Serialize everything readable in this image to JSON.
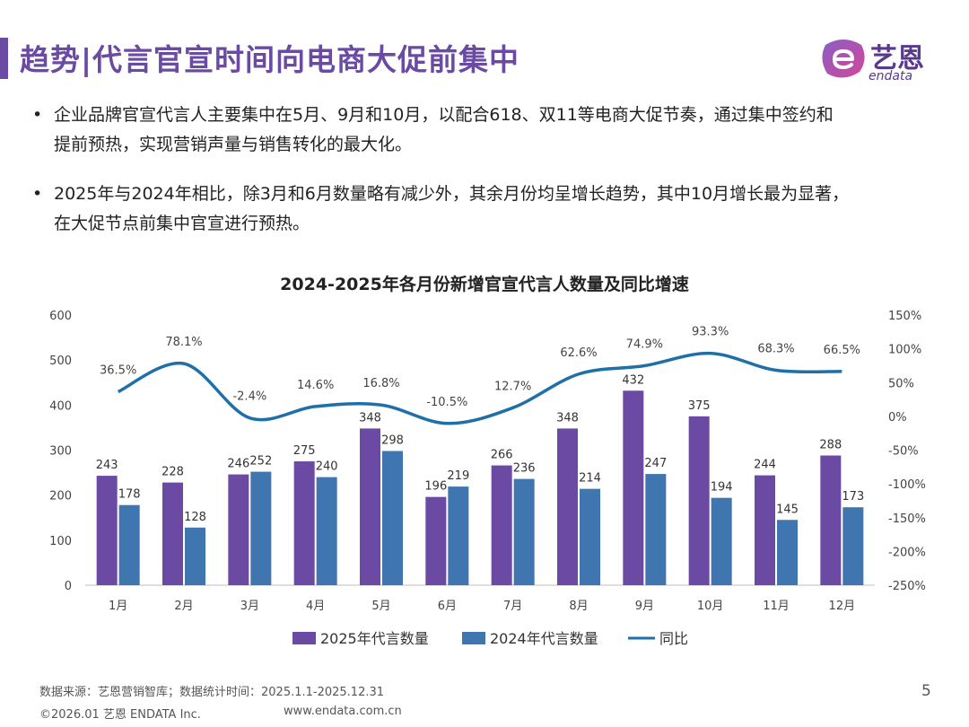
{
  "header": {
    "title": "趋势|代言官宣时间向电商大促前集中",
    "logo_cn": "艺恩",
    "logo_en": "endata"
  },
  "bullets": [
    {
      "marker": "•",
      "lines": [
        "企业品牌官宣代言人主要集中在5月、9月和10月，以配合618、双11等电商大促节奏，通过集中签约和",
        "提前预热，实现营销声量与销售转化的最大化。"
      ]
    },
    {
      "marker": "•",
      "lines": [
        "2025年与2024年相比，除3月和6月数量略有减少外，其余月份均呈增长趋势，其中10月增长最为显著，",
        "在大促节点前集中官宣进行预热。"
      ]
    }
  ],
  "chart_data": {
    "type": "bar",
    "title": "2024-2025年各月份新增官宣代言人数量及同比增速",
    "categories": [
      "1月",
      "2月",
      "3月",
      "4月",
      "5月",
      "6月",
      "7月",
      "8月",
      "9月",
      "10月",
      "11月",
      "12月"
    ],
    "series": [
      {
        "name": "2025年代言数量",
        "type": "bar",
        "color": "#6a4aa2",
        "values": [
          243,
          228,
          246,
          275,
          348,
          196,
          266,
          348,
          432,
          375,
          244,
          288
        ]
      },
      {
        "name": "2024年代言数量",
        "type": "bar",
        "color": "#3f76b0",
        "values": [
          178,
          128,
          252,
          240,
          298,
          219,
          236,
          214,
          247,
          194,
          145,
          173
        ]
      },
      {
        "name": "同比",
        "type": "line",
        "color": "#1f6fa8",
        "axis": "right",
        "values": [
          36.5,
          78.1,
          -2.4,
          14.6,
          16.8,
          -10.5,
          12.7,
          62.6,
          74.9,
          93.3,
          68.3,
          66.5
        ],
        "labels": [
          "36.5%",
          "78.1%",
          "-2.4%",
          "14.6%",
          "16.8%",
          "-10.5%",
          "12.7%",
          "62.6%",
          "74.9%",
          "93.3%",
          "68.3%",
          "66.5%"
        ]
      }
    ],
    "ylim": [
      0,
      600
    ],
    "yticks": [
      0,
      100,
      200,
      300,
      400,
      500,
      600
    ],
    "ytick_labels": [
      "0",
      "100",
      "200",
      "300",
      "400",
      "500",
      "600"
    ],
    "y2lim": [
      -250,
      150
    ],
    "y2ticks": [
      -250,
      -200,
      -150,
      -100,
      -50,
      0,
      50,
      100,
      150
    ],
    "y2tick_labels": [
      "-250%",
      "-200%",
      "-150%",
      "-100%",
      "-50%",
      "0%",
      "50%",
      "100%",
      "150%"
    ],
    "grid": false,
    "legend_position": "bottom"
  },
  "footer": {
    "source": "数据来源：艺恩营销智库；数据统计时间：2025.1.1-2025.12.31",
    "copyright": "©2026.01 艺恩 ENDATA Inc.",
    "website": "www.endata.com.cn",
    "page": "5"
  }
}
